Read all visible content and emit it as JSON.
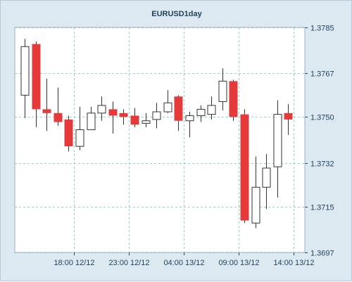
{
  "chart_data": {
    "type": "candlestick",
    "title": "EURUSD1day",
    "ylim": [
      1.3697,
      1.3785
    ],
    "yticks": [
      1.3785,
      1.3767,
      1.375,
      1.3732,
      1.3715,
      1.3697
    ],
    "ytick_labels": [
      "1.3785",
      "1.3767",
      "1.3750",
      "1.3732",
      "1.3715",
      "1.3697"
    ],
    "xtick_labels": [
      {
        "label": "18:00 12/12",
        "index": 4.5
      },
      {
        "label": "23:00 12/12",
        "index": 9.5
      },
      {
        "label": "04:00 13/12",
        "index": 14.5
      },
      {
        "label": "09:00 13/12",
        "index": 19.5
      },
      {
        "label": "14:00 13/12",
        "index": 24.5
      }
    ],
    "grid": true,
    "colors": {
      "bull_fill": "#ffffff",
      "bear_fill": "#e63a3a",
      "outline": "#333333",
      "grid": "#8fd0d0",
      "axis_text": "#1c3f5f"
    },
    "candles": [
      {
        "o": 1.37585,
        "h": 1.37805,
        "l": 1.37495,
        "c": 1.37775
      },
      {
        "o": 1.37785,
        "h": 1.37795,
        "l": 1.3746,
        "c": 1.3753
      },
      {
        "o": 1.3753,
        "h": 1.3765,
        "l": 1.37445,
        "c": 1.37515
      },
      {
        "o": 1.37515,
        "h": 1.37615,
        "l": 1.37465,
        "c": 1.3748
      },
      {
        "o": 1.3749,
        "h": 1.37505,
        "l": 1.37365,
        "c": 1.37385
      },
      {
        "o": 1.37385,
        "h": 1.3754,
        "l": 1.3737,
        "c": 1.3745
      },
      {
        "o": 1.3745,
        "h": 1.3754,
        "l": 1.3745,
        "c": 1.37515
      },
      {
        "o": 1.37515,
        "h": 1.3758,
        "l": 1.37485,
        "c": 1.37545
      },
      {
        "o": 1.3753,
        "h": 1.3756,
        "l": 1.37435,
        "c": 1.37505
      },
      {
        "o": 1.37515,
        "h": 1.3753,
        "l": 1.3747,
        "c": 1.375
      },
      {
        "o": 1.37505,
        "h": 1.37535,
        "l": 1.3746,
        "c": 1.3747
      },
      {
        "o": 1.37475,
        "h": 1.37515,
        "l": 1.3746,
        "c": 1.37485
      },
      {
        "o": 1.3749,
        "h": 1.37555,
        "l": 1.37455,
        "c": 1.3752
      },
      {
        "o": 1.3752,
        "h": 1.37605,
        "l": 1.37515,
        "c": 1.37555
      },
      {
        "o": 1.3758,
        "h": 1.37585,
        "l": 1.37445,
        "c": 1.37485
      },
      {
        "o": 1.37485,
        "h": 1.3752,
        "l": 1.3742,
        "c": 1.37505
      },
      {
        "o": 1.37505,
        "h": 1.37545,
        "l": 1.3748,
        "c": 1.3753
      },
      {
        "o": 1.3751,
        "h": 1.3758,
        "l": 1.3749,
        "c": 1.37545
      },
      {
        "o": 1.3756,
        "h": 1.3769,
        "l": 1.37525,
        "c": 1.3764
      },
      {
        "o": 1.3764,
        "h": 1.37645,
        "l": 1.37485,
        "c": 1.375
      },
      {
        "o": 1.3751,
        "h": 1.3753,
        "l": 1.37085,
        "c": 1.37095
      },
      {
        "o": 1.37085,
        "h": 1.37345,
        "l": 1.37065,
        "c": 1.37225
      },
      {
        "o": 1.37225,
        "h": 1.37355,
        "l": 1.3714,
        "c": 1.373
      },
      {
        "o": 1.37305,
        "h": 1.37565,
        "l": 1.37185,
        "c": 1.3751
      },
      {
        "o": 1.37515,
        "h": 1.3755,
        "l": 1.3743,
        "c": 1.3749
      }
    ]
  }
}
